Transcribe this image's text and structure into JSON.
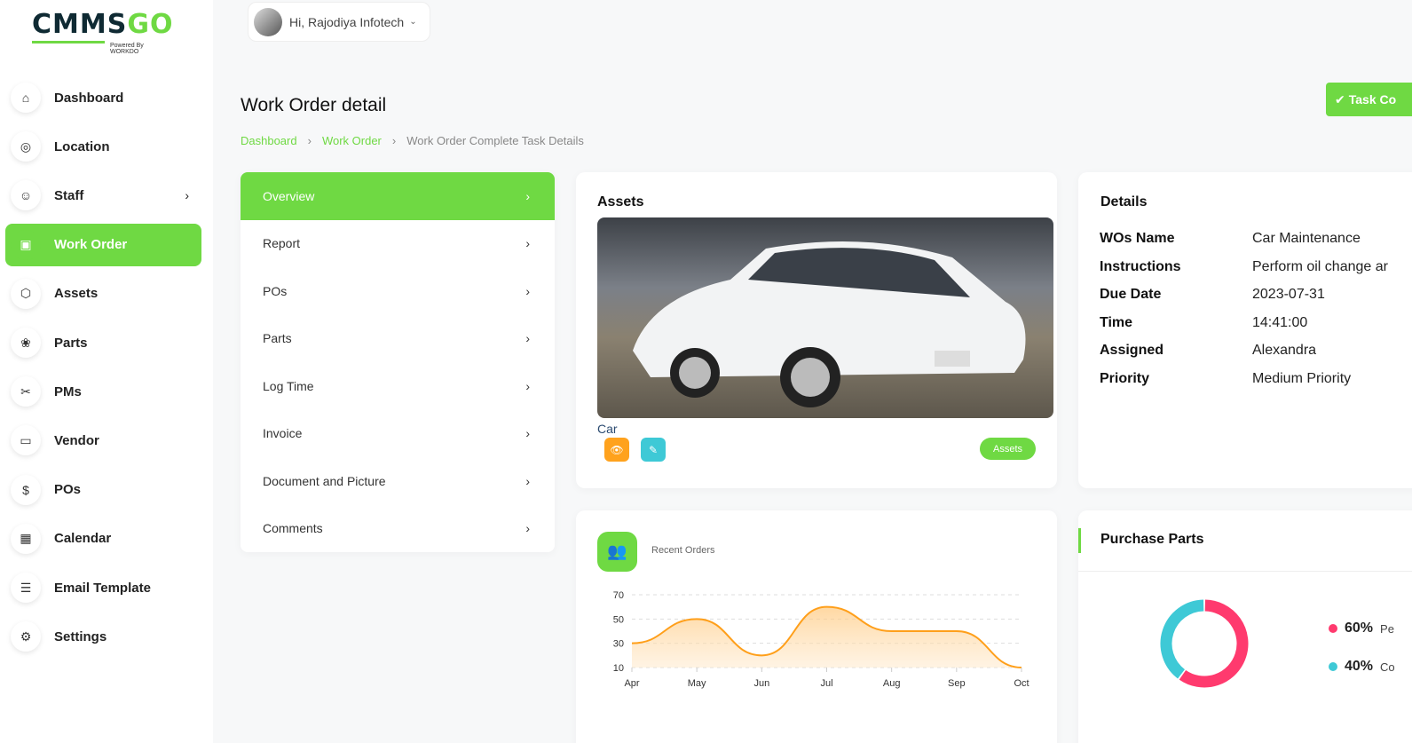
{
  "brand": {
    "name_a": "CMMS",
    "name_b": "GO",
    "powered": "Powered By WORKDO"
  },
  "user": {
    "greeting": "Hi, Rajodiya Infotech"
  },
  "sidebar": {
    "items": [
      {
        "label": "Dashboard",
        "icon": "home-icon"
      },
      {
        "label": "Location",
        "icon": "location-icon"
      },
      {
        "label": "Staff",
        "icon": "users-icon",
        "has_submenu": true
      },
      {
        "label": "Work Order",
        "icon": "clipboard-icon",
        "active": true
      },
      {
        "label": "Assets",
        "icon": "box-icon"
      },
      {
        "label": "Parts",
        "icon": "parts-icon"
      },
      {
        "label": "PMs",
        "icon": "tools-icon"
      },
      {
        "label": "Vendor",
        "icon": "card-icon"
      },
      {
        "label": "POs",
        "icon": "dollar-icon"
      },
      {
        "label": "Calendar",
        "icon": "calendar-icon"
      },
      {
        "label": "Email Template",
        "icon": "template-icon"
      },
      {
        "label": "Settings",
        "icon": "gear-icon"
      }
    ]
  },
  "page": {
    "title": "Work Order detail",
    "task_button": "Task Co",
    "breadcrumb": [
      "Dashboard",
      "Work Order",
      "Work Order Complete Task Details"
    ]
  },
  "menu": {
    "items": [
      "Overview",
      "Report",
      "POs",
      "Parts",
      "Log Time",
      "Invoice",
      "Document and Picture",
      "Comments"
    ],
    "active": "Overview"
  },
  "assets": {
    "title": "Assets",
    "caption": "Car",
    "button": "Assets"
  },
  "details": {
    "title": "Details",
    "rows": [
      {
        "k": "WOs Name",
        "v": "Car Maintenance"
      },
      {
        "k": "Instructions",
        "v": "Perform oil change ar"
      },
      {
        "k": "Due Date",
        "v": "2023-07-31"
      },
      {
        "k": "Time",
        "v": "14:41:00"
      },
      {
        "k": "Assigned",
        "v": "Alexandra"
      },
      {
        "k": "Priority",
        "v": "Medium Priority"
      }
    ]
  },
  "chart_data": [
    {
      "type": "area",
      "title": "Recent Orders",
      "categories": [
        "Apr",
        "May",
        "Jun",
        "Jul",
        "Aug",
        "Sep",
        "Oct"
      ],
      "values": [
        30,
        50,
        20,
        60,
        40,
        40,
        10
      ],
      "yticks": [
        10,
        30,
        50,
        70
      ],
      "ylim": [
        10,
        70
      ],
      "grid": true,
      "color": "#ff9f1a"
    },
    {
      "type": "pie",
      "title": "Purchase Parts",
      "donut": true,
      "series": [
        {
          "label": "Pe",
          "value": 60,
          "display": "60%",
          "color": "#ff3a6e"
        },
        {
          "label": "Co",
          "value": 40,
          "display": "40%",
          "color": "#3ec9d6"
        }
      ]
    }
  ],
  "colors": {
    "accent": "#6fd943",
    "orange": "#ffa21d",
    "cyan": "#3ec9d6"
  }
}
